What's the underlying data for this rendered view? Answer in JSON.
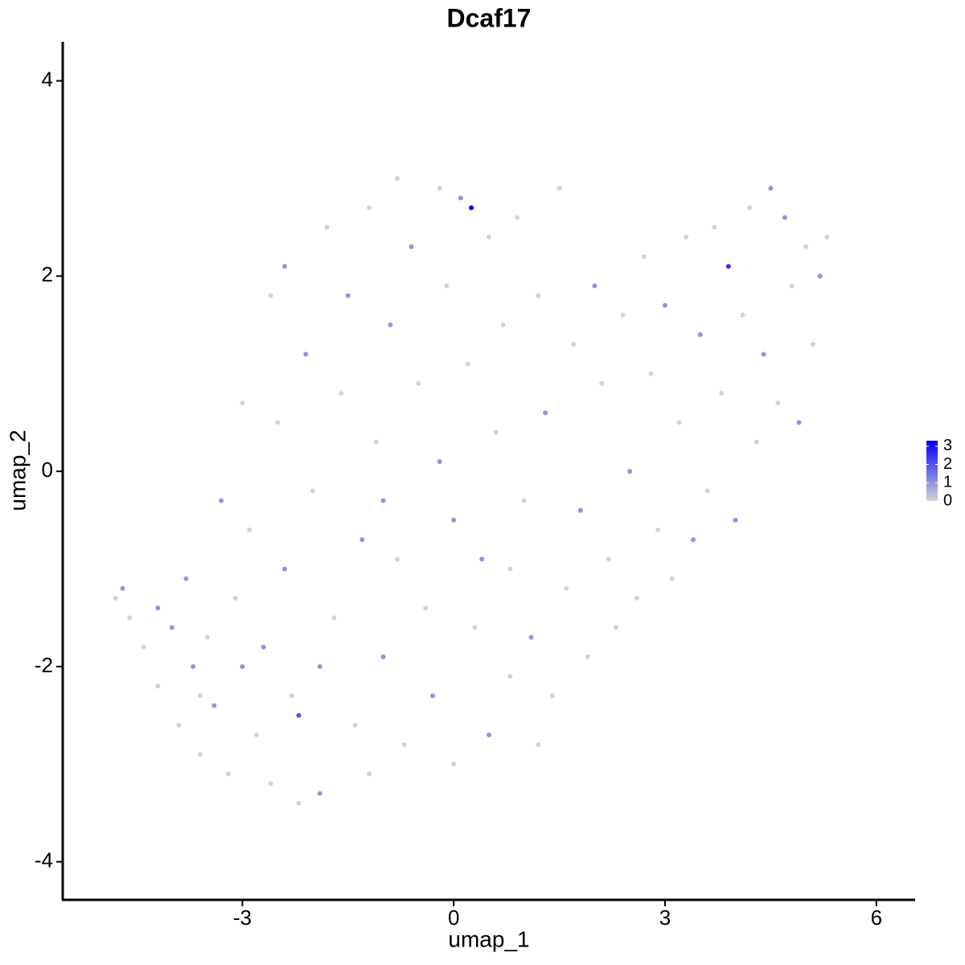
{
  "chart_data": {
    "type": "scatter",
    "title": "Dcaf17",
    "x_label": "umap_1",
    "y_label": "umap_2",
    "xlim": [
      -5.55,
      6.55
    ],
    "ylim": [
      -4.39,
      4.4
    ],
    "xticks": [
      -3,
      0,
      3,
      6
    ],
    "yticks": [
      -4,
      -2,
      0,
      2,
      4
    ],
    "grid": false,
    "color_low": "#d3d3d3",
    "color_high": "#0000ff",
    "colorlim": [
      0,
      3.3
    ],
    "colorbar_ticks": [
      0,
      1,
      2,
      3
    ],
    "series": [
      {
        "x": [
          -4.8,
          -4.7,
          -4.6,
          -4.4,
          -4.2,
          -4.0,
          -3.9,
          -3.8,
          -3.7,
          -3.6,
          -3.5,
          -3.4,
          -3.3,
          -3.2,
          -3.1,
          -3.0,
          -2.9,
          -2.8,
          -2.7,
          -2.6,
          -2.5,
          -2.4,
          -2.3,
          -2.2,
          -2.2,
          -2.1,
          -2.0,
          -1.9,
          -1.9,
          -1.8,
          -1.7,
          -1.6,
          -1.5,
          -1.4,
          -1.3,
          -1.2,
          -1.2,
          -1.1,
          -1.0,
          -0.9,
          -0.8,
          -0.8,
          -0.7,
          -0.6,
          -0.5,
          -0.4,
          -0.3,
          -0.2,
          -0.2,
          -0.1,
          0.0,
          0.0,
          0.1,
          0.2,
          0.25,
          0.3,
          0.4,
          0.5,
          0.5,
          0.6,
          0.7,
          0.8,
          0.9,
          1.0,
          1.1,
          1.2,
          1.3,
          1.4,
          1.5,
          1.6,
          1.7,
          1.8,
          1.9,
          2.0,
          2.1,
          2.2,
          2.3,
          2.4,
          2.5,
          2.6,
          2.7,
          2.8,
          2.9,
          3.0,
          3.1,
          3.2,
          3.3,
          3.4,
          3.5,
          3.6,
          3.7,
          3.8,
          3.9,
          4.0,
          4.1,
          4.2,
          4.3,
          4.4,
          4.5,
          4.6,
          4.7,
          4.8,
          4.9,
          5.0,
          5.1,
          5.2,
          5.3,
          -3.0,
          -2.6,
          -2.4,
          -1.0,
          0.8,
          1.2,
          -3.6,
          -4.2
        ],
        "y": [
          -1.3,
          -1.2,
          -1.5,
          -1.8,
          -2.2,
          -1.6,
          -2.6,
          -1.1,
          -2.0,
          -2.9,
          -1.7,
          -2.4,
          -0.3,
          -3.1,
          -1.3,
          -2.0,
          -0.6,
          -2.7,
          -1.8,
          -3.2,
          0.5,
          -1.0,
          -2.3,
          -3.4,
          -2.5,
          1.2,
          -0.2,
          -2.0,
          -3.3,
          2.5,
          -1.5,
          0.8,
          1.8,
          -2.6,
          -0.7,
          2.7,
          -3.1,
          0.3,
          -1.9,
          1.5,
          3.0,
          -0.9,
          -2.8,
          2.3,
          0.9,
          -1.4,
          -2.3,
          2.9,
          0.1,
          1.9,
          -0.5,
          -3.0,
          2.8,
          1.1,
          2.7,
          -1.6,
          -0.9,
          2.4,
          -2.7,
          0.4,
          1.5,
          -2.1,
          2.6,
          -0.3,
          -1.7,
          1.8,
          0.6,
          -2.3,
          2.9,
          -1.2,
          1.3,
          -0.4,
          -1.9,
          1.9,
          0.9,
          -0.9,
          -1.6,
          1.6,
          0.0,
          -1.3,
          2.2,
          1.0,
          -0.6,
          1.7,
          -1.1,
          0.5,
          2.4,
          -0.7,
          1.4,
          -0.2,
          2.5,
          0.8,
          2.1,
          -0.5,
          1.6,
          2.7,
          0.3,
          1.2,
          2.9,
          0.7,
          2.6,
          1.9,
          0.5,
          2.3,
          1.3,
          2.0,
          2.4,
          0.7,
          1.8,
          2.1,
          -0.3,
          -1.0,
          -2.8,
          -2.3,
          -1.4
        ],
        "values": [
          0,
          1,
          0,
          0,
          0,
          1,
          0,
          1,
          1,
          0,
          0,
          1,
          1,
          0,
          0,
          1,
          0,
          0,
          1,
          0,
          0,
          1,
          0,
          0,
          2,
          1,
          0,
          1,
          1,
          0,
          0,
          0,
          1,
          0,
          1,
          0,
          0,
          0,
          1,
          1,
          0,
          0,
          0,
          1,
          0,
          0,
          1,
          0,
          1,
          0,
          1,
          0,
          1,
          0,
          3.3,
          0,
          1,
          0,
          1,
          0,
          0,
          0,
          0,
          0,
          1,
          0,
          1,
          0,
          0,
          0,
          0,
          1,
          0,
          1,
          0,
          0,
          0,
          0,
          1,
          0,
          0,
          0,
          0,
          1,
          0,
          0,
          0,
          1,
          1,
          0,
          0,
          0,
          2.5,
          1,
          0,
          0,
          0,
          1,
          1,
          0,
          1,
          0,
          1,
          0,
          0,
          1,
          0,
          0,
          0,
          1,
          1,
          0,
          0,
          0,
          1
        ]
      }
    ]
  }
}
